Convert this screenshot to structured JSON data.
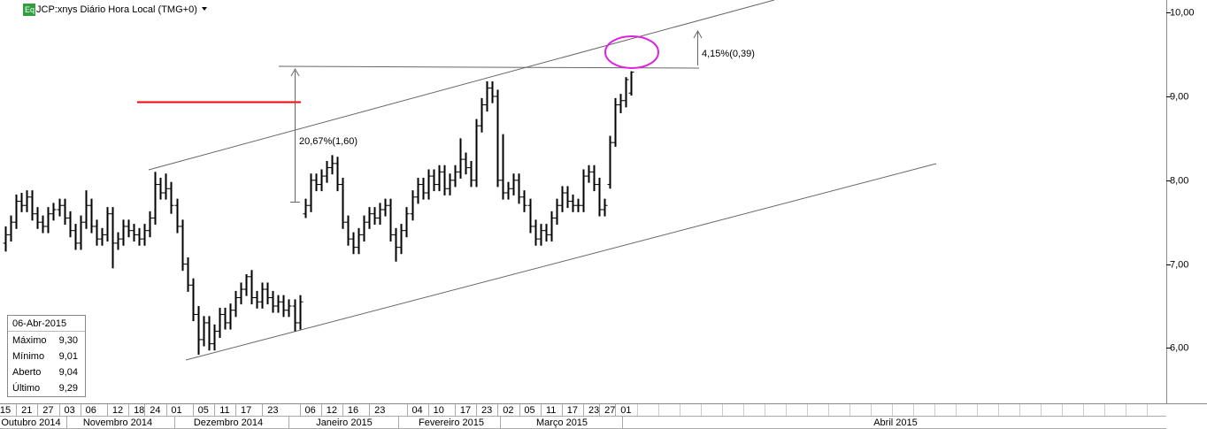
{
  "chart_data": {
    "type": "ohlc",
    "title": "JCP:xnys Diário Hora Local (TMG+0)",
    "icon_label": "Eq",
    "open": [
      7.25,
      7.35,
      7.5,
      7.75,
      7.7,
      7.8,
      7.6,
      7.5,
      7.45,
      7.6,
      7.65,
      7.7,
      7.55,
      7.4,
      7.25,
      7.5,
      7.7,
      7.45,
      7.3,
      7.35,
      7.6,
      7.25,
      7.3,
      7.45,
      7.4,
      7.35,
      7.3,
      7.4,
      7.55,
      7.95,
      7.85,
      7.9,
      7.7,
      7.45,
      7.0,
      6.75,
      6.4,
      6.1,
      6.3,
      6.05,
      6.2,
      6.4,
      6.3,
      6.45,
      6.6,
      6.7,
      6.85,
      6.6,
      6.55,
      6.7,
      6.6,
      6.5,
      6.55,
      6.45,
      6.5,
      6.3,
      7.6,
      7.7,
      8.0,
      7.95,
      8.05,
      8.15,
      8.2,
      7.95,
      7.5,
      7.3,
      7.2,
      7.35,
      7.5,
      7.6,
      7.55,
      7.65,
      7.7,
      7.35,
      7.2,
      7.4,
      7.6,
      7.8,
      7.95,
      7.85,
      8.05,
      7.95,
      8.1,
      7.9,
      8.0,
      8.1,
      8.25,
      8.15,
      8.0,
      8.65,
      8.9,
      9.1,
      9.0,
      8.0,
      7.85,
      7.9,
      8.0,
      7.8,
      7.7,
      7.45,
      7.3,
      7.4,
      7.35,
      7.55,
      7.7,
      7.85,
      7.75,
      7.7,
      7.7,
      8.05,
      8.1,
      7.95,
      7.65,
      7.95,
      8.45,
      8.9,
      8.95,
      9.04
    ],
    "high": [
      7.45,
      7.58,
      7.83,
      7.85,
      7.88,
      7.88,
      7.68,
      7.58,
      7.68,
      7.73,
      7.78,
      7.78,
      7.63,
      7.48,
      7.58,
      7.88,
      7.78,
      7.53,
      7.43,
      7.68,
      7.68,
      7.38,
      7.53,
      7.53,
      7.48,
      7.43,
      7.48,
      7.63,
      8.1,
      8.03,
      8.08,
      7.98,
      7.78,
      7.53,
      7.08,
      6.83,
      6.5,
      6.38,
      6.38,
      6.28,
      6.48,
      6.48,
      6.53,
      6.68,
      6.78,
      6.88,
      6.93,
      6.68,
      6.78,
      6.78,
      6.68,
      6.63,
      6.63,
      6.58,
      6.58,
      6.63,
      7.78,
      8.08,
      8.08,
      8.13,
      8.23,
      8.3,
      8.28,
      8.03,
      7.58,
      7.38,
      7.43,
      7.58,
      7.68,
      7.68,
      7.73,
      7.78,
      7.78,
      7.43,
      7.48,
      7.68,
      7.88,
      8.03,
      8.03,
      8.13,
      8.13,
      8.18,
      8.18,
      8.08,
      8.18,
      8.5,
      8.33,
      8.23,
      8.73,
      8.98,
      9.18,
      9.18,
      9.08,
      8.55,
      7.98,
      8.08,
      8.08,
      7.88,
      7.78,
      7.53,
      7.48,
      7.48,
      7.63,
      7.78,
      7.93,
      7.93,
      7.83,
      7.78,
      8.13,
      8.18,
      8.18,
      8.03,
      7.78,
      8.53,
      8.98,
      9.03,
      9.23,
      9.3
    ],
    "low": [
      7.15,
      7.27,
      7.42,
      7.62,
      7.62,
      7.52,
      7.42,
      7.37,
      7.37,
      7.52,
      7.57,
      7.47,
      7.32,
      7.17,
      7.17,
      7.42,
      7.37,
      7.22,
      7.22,
      7.27,
      6.95,
      7.17,
      7.22,
      7.32,
      7.27,
      7.22,
      7.22,
      7.32,
      7.47,
      7.77,
      7.77,
      7.6,
      7.37,
      6.92,
      6.67,
      6.32,
      5.92,
      6.02,
      5.97,
      5.97,
      6.12,
      6.22,
      6.22,
      6.37,
      6.52,
      6.62,
      6.52,
      6.47,
      6.47,
      6.52,
      6.42,
      6.42,
      6.37,
      6.37,
      6.2,
      6.22,
      7.55,
      7.62,
      7.87,
      7.87,
      7.97,
      8.07,
      7.87,
      7.42,
      7.22,
      7.12,
      7.12,
      7.27,
      7.42,
      7.47,
      7.47,
      7.57,
      7.27,
      7.03,
      7.12,
      7.32,
      7.52,
      7.72,
      7.77,
      7.77,
      7.87,
      7.87,
      7.82,
      7.82,
      7.92,
      8.02,
      8.07,
      7.92,
      7.92,
      8.57,
      8.82,
      8.92,
      7.92,
      7.77,
      7.77,
      7.82,
      7.72,
      7.62,
      7.37,
      7.22,
      7.22,
      7.27,
      7.27,
      7.47,
      7.62,
      7.67,
      7.62,
      7.62,
      7.62,
      7.97,
      7.87,
      7.57,
      7.57,
      7.9,
      8.4,
      8.8,
      8.87,
      9.01
    ],
    "close": [
      7.35,
      7.5,
      7.75,
      7.7,
      7.8,
      7.6,
      7.5,
      7.45,
      7.6,
      7.65,
      7.7,
      7.55,
      7.4,
      7.25,
      7.5,
      7.7,
      7.45,
      7.3,
      7.35,
      7.6,
      7.25,
      7.3,
      7.45,
      7.4,
      7.35,
      7.3,
      7.4,
      7.55,
      7.95,
      7.85,
      7.9,
      7.7,
      7.45,
      7.0,
      6.75,
      6.4,
      6.1,
      6.3,
      6.05,
      6.2,
      6.4,
      6.3,
      6.45,
      6.6,
      6.7,
      6.85,
      6.6,
      6.55,
      6.7,
      6.6,
      6.5,
      6.55,
      6.45,
      6.5,
      6.3,
      6.55,
      7.7,
      8.0,
      7.95,
      8.05,
      8.15,
      8.2,
      7.95,
      7.5,
      7.3,
      7.2,
      7.35,
      7.5,
      7.6,
      7.55,
      7.65,
      7.7,
      7.35,
      7.2,
      7.4,
      7.6,
      7.8,
      7.95,
      7.85,
      8.05,
      7.95,
      8.1,
      7.9,
      8.0,
      8.1,
      8.25,
      8.15,
      8.0,
      8.65,
      8.9,
      9.1,
      9.0,
      8.0,
      7.85,
      7.9,
      8.0,
      7.8,
      7.7,
      7.45,
      7.3,
      7.4,
      7.35,
      7.55,
      7.7,
      7.85,
      7.75,
      7.7,
      7.7,
      8.05,
      8.1,
      7.95,
      7.65,
      7.7,
      8.45,
      8.9,
      8.95,
      9.2,
      9.29
    ],
    "color": "#000000",
    "xlim": [
      -1,
      217
    ],
    "xticks": [
      {
        "value": 0,
        "label": "15"
      },
      {
        "value": 4,
        "label": "21"
      },
      {
        "value": 8,
        "label": "27"
      },
      {
        "value": 12,
        "label": "03"
      },
      {
        "value": 16,
        "label": "06"
      },
      {
        "value": 21,
        "label": "12"
      },
      {
        "value": 25,
        "label": "18"
      },
      {
        "value": 28,
        "label": "24"
      },
      {
        "value": 32,
        "label": "01"
      },
      {
        "value": 37,
        "label": "05"
      },
      {
        "value": 41,
        "label": "11"
      },
      {
        "value": 45,
        "label": "17"
      },
      {
        "value": 50,
        "label": "23"
      },
      {
        "value": 57,
        "label": "06"
      },
      {
        "value": 61,
        "label": "12"
      },
      {
        "value": 65,
        "label": "16"
      },
      {
        "value": 70,
        "label": "23"
      },
      {
        "value": 77,
        "label": "04"
      },
      {
        "value": 81,
        "label": "10"
      },
      {
        "value": 86,
        "label": "17"
      },
      {
        "value": 90,
        "label": "23"
      },
      {
        "value": 94,
        "label": "02"
      },
      {
        "value": 98,
        "label": "05"
      },
      {
        "value": 102,
        "label": "11"
      },
      {
        "value": 106,
        "label": "17"
      },
      {
        "value": 110,
        "label": "23"
      },
      {
        "value": 113,
        "label": "27"
      },
      {
        "value": 116,
        "label": "01"
      }
    ],
    "months": [
      "Outubro 2014",
      "Novembro 2014",
      "Dezembro 2014",
      "Janeiro 2015",
      "Fevereiro 2015",
      "Março 2015",
      "Abril 2015"
    ],
    "ylim": [
      5.35,
      10.15
    ],
    "yticks": [
      {
        "value": 6,
        "label": "6,00"
      },
      {
        "value": 7,
        "label": "7,00"
      },
      {
        "value": 8,
        "label": "8,00"
      },
      {
        "value": 9,
        "label": "9,00"
      },
      {
        "value": 10,
        "label": "10,00"
      }
    ],
    "annotations": [
      "20,67%(1,60)",
      "4,15%(0,39)"
    ],
    "info_box": {
      "date": "06-Abr-2015",
      "rows": [
        [
          "Máximo",
          "9,30"
        ],
        [
          "Mínimo",
          "9,01"
        ],
        [
          "Aberto",
          "9,04"
        ],
        [
          "Último",
          "9,29"
        ]
      ]
    }
  }
}
